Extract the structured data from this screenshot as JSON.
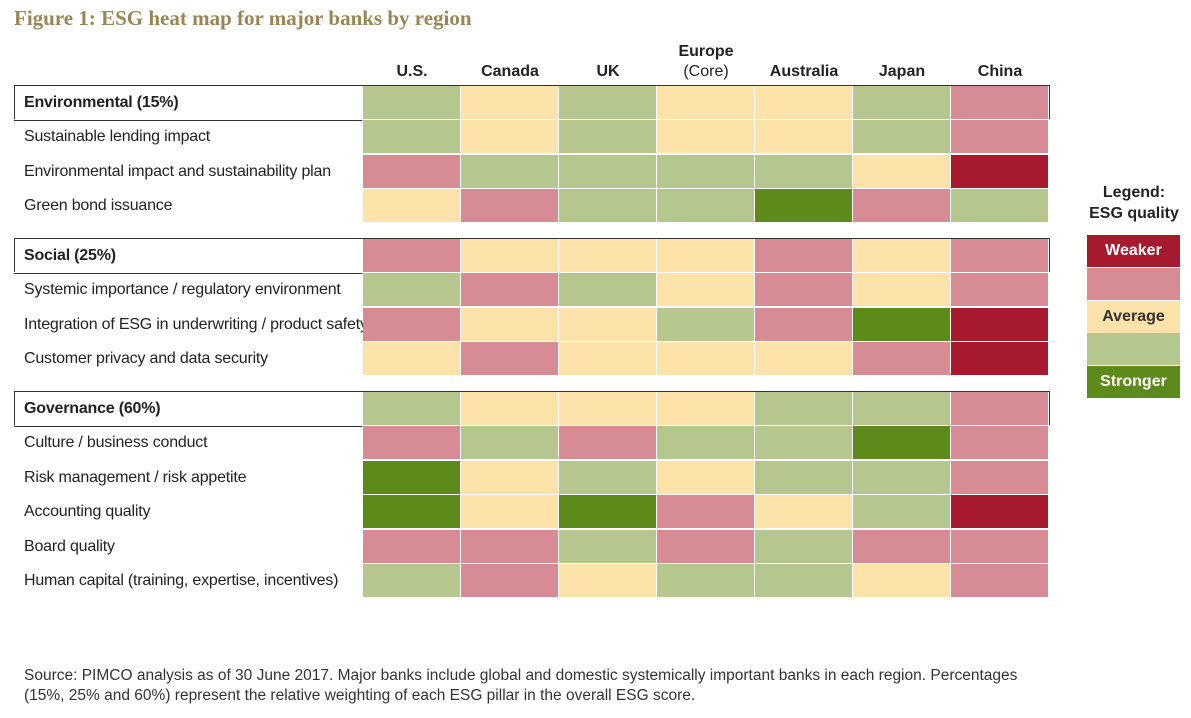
{
  "title": "Figure 1: ESG heat map for major banks by region",
  "chart_data": {
    "type": "heatmap",
    "columns": [
      {
        "name": "U.S.",
        "sub": ""
      },
      {
        "name": "Canada",
        "sub": ""
      },
      {
        "name": "UK",
        "sub": ""
      },
      {
        "name": "Europe",
        "sub": "(Core)"
      },
      {
        "name": "Australia",
        "sub": ""
      },
      {
        "name": "Japan",
        "sub": ""
      },
      {
        "name": "China",
        "sub": ""
      }
    ],
    "scale": {
      "1": "Weaker",
      "2": "",
      "3": "Average",
      "4": "",
      "5": "Stronger"
    },
    "colors": {
      "1": "#a6192e",
      "2": "#d68b95",
      "3": "#fde3a9",
      "4": "#b5c68e",
      "5": "#5e8a1c"
    },
    "rows": [
      {
        "label": "Environmental (15%)",
        "pillar": true,
        "values": [
          4,
          3,
          4,
          3,
          3,
          4,
          2
        ]
      },
      {
        "label": "Sustainable lending impact",
        "pillar": false,
        "values": [
          4,
          3,
          4,
          3,
          3,
          4,
          2
        ]
      },
      {
        "label": "Environmental impact and sustainability plan",
        "pillar": false,
        "values": [
          2,
          4,
          4,
          4,
          4,
          3,
          1
        ]
      },
      {
        "label": "Green bond issuance",
        "pillar": false,
        "values": [
          3,
          2,
          4,
          4,
          5,
          2,
          4
        ]
      },
      {
        "label": "Social (25%)",
        "pillar": true,
        "values": [
          2,
          3,
          3,
          3,
          2,
          3,
          2
        ]
      },
      {
        "label": "Systemic importance / regulatory environment",
        "pillar": false,
        "values": [
          4,
          2,
          4,
          3,
          2,
          3,
          2
        ]
      },
      {
        "label": "Integration of ESG in underwriting / product safety",
        "pillar": false,
        "values": [
          2,
          3,
          3,
          4,
          2,
          5,
          1
        ]
      },
      {
        "label": "Customer privacy and data security",
        "pillar": false,
        "values": [
          3,
          2,
          3,
          3,
          3,
          2,
          1
        ]
      },
      {
        "label": "Governance (60%)",
        "pillar": true,
        "values": [
          4,
          3,
          3,
          3,
          4,
          4,
          2
        ]
      },
      {
        "label": "Culture / business conduct",
        "pillar": false,
        "values": [
          2,
          4,
          2,
          4,
          4,
          5,
          2
        ]
      },
      {
        "label": "Risk management / risk appetite",
        "pillar": false,
        "values": [
          5,
          3,
          4,
          3,
          4,
          4,
          2
        ]
      },
      {
        "label": "Accounting quality",
        "pillar": false,
        "values": [
          5,
          3,
          5,
          2,
          3,
          4,
          1
        ]
      },
      {
        "label": "Board quality",
        "pillar": false,
        "values": [
          2,
          2,
          4,
          2,
          4,
          2,
          2
        ]
      },
      {
        "label": "Human capital (training, expertise, incentives)",
        "pillar": false,
        "values": [
          4,
          2,
          3,
          4,
          4,
          3,
          2
        ]
      }
    ]
  },
  "legend": {
    "title_line1": "Legend:",
    "title_line2": "ESG quality",
    "items": [
      {
        "label": "Weaker",
        "color": "#a6192e",
        "text_color": "#ffffff"
      },
      {
        "label": "",
        "color": "#d68b95",
        "text_color": "#333333"
      },
      {
        "label": "Average",
        "color": "#fde3a9",
        "text_color": "#333333"
      },
      {
        "label": "",
        "color": "#b5c68e",
        "text_color": "#333333"
      },
      {
        "label": "Stronger",
        "color": "#5e8a1c",
        "text_color": "#ffffff"
      }
    ]
  },
  "source": "Source: PIMCO analysis as of 30 June 2017. Major banks include global and domestic systemically important banks in each region. Percentages (15%, 25% and 60%) represent the relative weighting of each ESG pillar in the overall ESG score."
}
